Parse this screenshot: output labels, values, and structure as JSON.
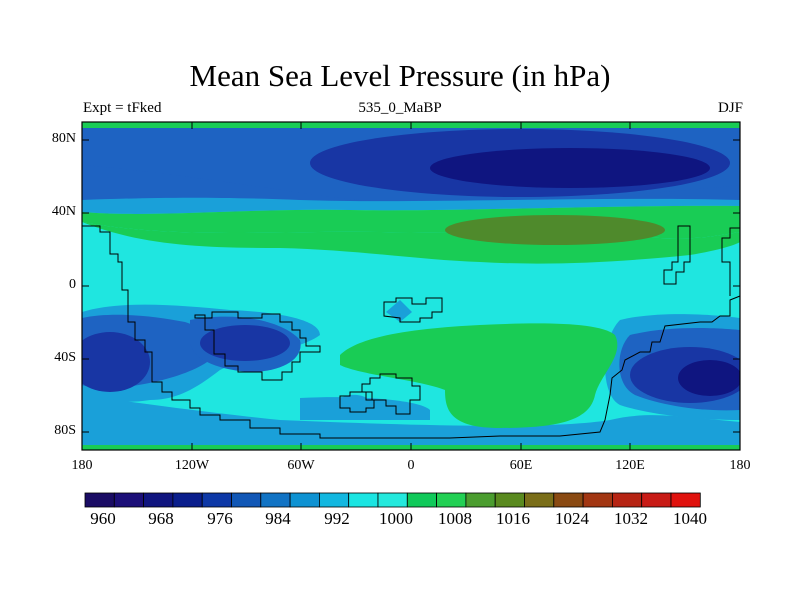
{
  "title": "Mean Sea Level Pressure (in hPa)",
  "left_string": "Expt = tFked",
  "center_string": "535_0_MaBP",
  "right_string": "DJF",
  "map": {
    "lat_ticks": [
      "80N",
      "40N",
      "0",
      "40S",
      "80S"
    ],
    "lon_ticks": [
      "180",
      "120W",
      "60W",
      "0",
      "60E",
      "120E",
      "180"
    ]
  },
  "colorbar": {
    "levels": [
      960,
      964,
      968,
      972,
      976,
      980,
      984,
      988,
      992,
      996,
      1000,
      1004,
      1008,
      1012,
      1016,
      1020,
      1024,
      1028,
      1032,
      1036,
      1040
    ],
    "labels": [
      "960",
      "968",
      "976",
      "984",
      "992",
      "1000",
      "1008",
      "1016",
      "1024",
      "1032",
      "1040"
    ],
    "colors": [
      "#1a0c64",
      "#1c0f78",
      "#10157f",
      "#0a1e8c",
      "#0d38a6",
      "#1157b6",
      "#1173c4",
      "#0e92d2",
      "#12b7e0",
      "#1be5e2",
      "#24e9dd",
      "#10c95a",
      "#22d054",
      "#4b9d2f",
      "#5a8a1f",
      "#7a6e19",
      "#8a4a12",
      "#a23612",
      "#b62413",
      "#c81b16",
      "#e0120e"
    ]
  },
  "colors": {
    "deep_low": "#0f1580",
    "low": "#1836a4",
    "mid_low": "#1e63c2",
    "mid": "#1aa0d9",
    "cyan": "#1fe6e0",
    "green": "#19cc55",
    "dark_green": "#4f8a2c"
  }
}
